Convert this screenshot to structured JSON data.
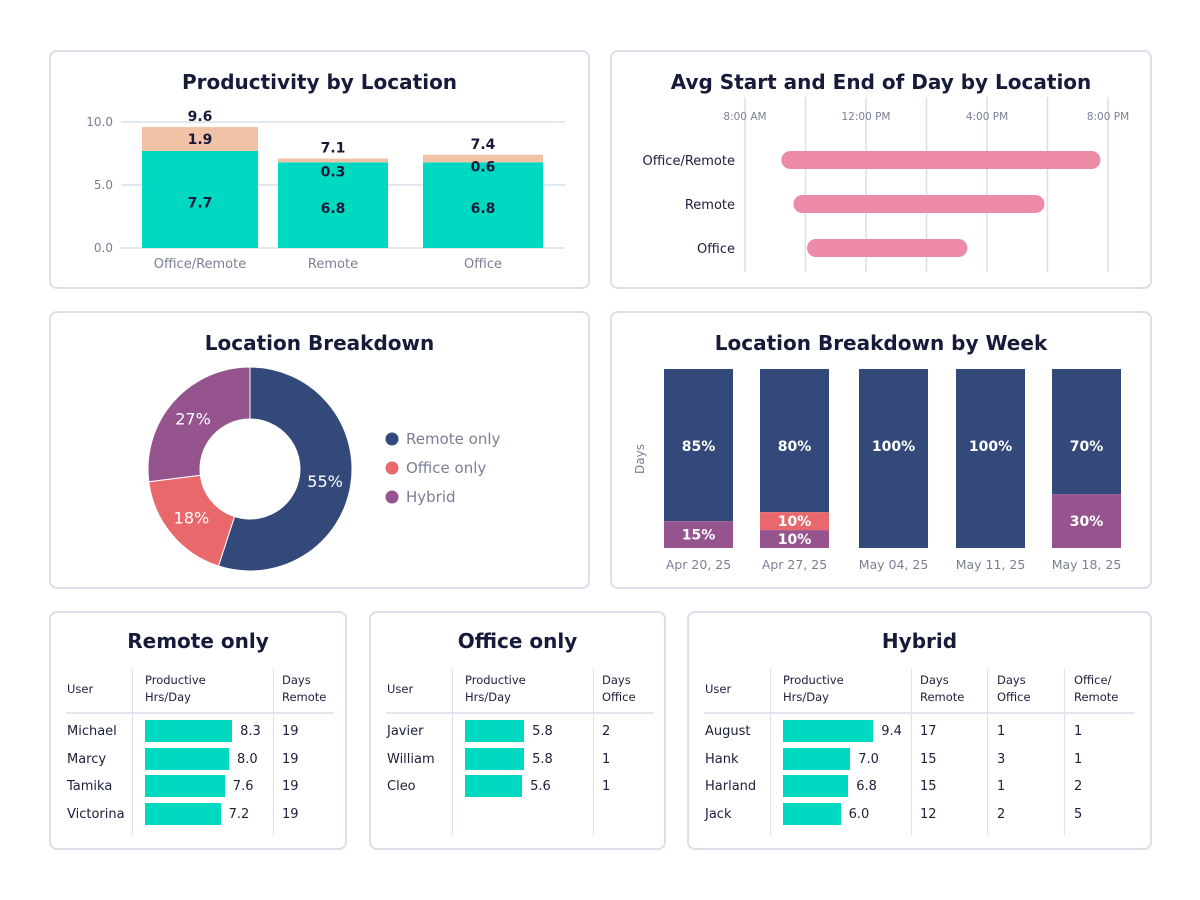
{
  "colors": {
    "teal": "#00d9c2",
    "peach": "#f2c2a6",
    "pink": "#ec8aa8",
    "navy": "#33497a",
    "office": "#e8686b",
    "hybrid": "#96548f",
    "grid": "#d9e0ea",
    "axis": "#7a7f95"
  },
  "chart_data": [
    {
      "type": "bar",
      "stacked": true,
      "title": "Productivity by Location",
      "categories": [
        "Office/Remote",
        "Remote",
        "Office"
      ],
      "series": [
        {
          "values": [
            7.7,
            6.8,
            6.8
          ]
        },
        {
          "values": [
            1.9,
            0.3,
            0.6
          ]
        }
      ],
      "totals": [
        9.6,
        7.1,
        7.4
      ],
      "yticks": [
        "0.0",
        "5.0",
        "10.0"
      ],
      "ylim": [
        0,
        10
      ],
      "grid": true
    },
    {
      "type": "bar",
      "orientation": "horizontal-range",
      "title": "Avg Start and End of Day by Location",
      "categories": [
        "Office/Remote",
        "Remote",
        "Office"
      ],
      "start_hours": [
        9.2,
        9.6,
        10.05
      ],
      "end_hours": [
        19.75,
        17.9,
        15.35
      ],
      "xticks": [
        "8:00 AM",
        "12:00 PM",
        "4:00 PM",
        "8:00 PM"
      ],
      "xlim_hours": [
        8,
        20
      ],
      "grid": true
    },
    {
      "type": "pie",
      "donut": true,
      "title": "Location Breakdown",
      "legend": "right",
      "slices": [
        {
          "name": "Remote only",
          "value": 55,
          "label": "55%"
        },
        {
          "name": "Office only",
          "value": 18,
          "label": "18%"
        },
        {
          "name": "Hybrid",
          "value": 27,
          "label": "27%"
        }
      ]
    },
    {
      "type": "bar",
      "stacked": true,
      "percent": true,
      "title": "Location Breakdown by Week",
      "ylabel": "Days",
      "categories": [
        "Apr 20, 25",
        "Apr 27, 25",
        "May 04, 25",
        "May 11, 25",
        "May 18, 25"
      ],
      "series": [
        {
          "key": "navy",
          "values": [
            85,
            80,
            100,
            100,
            70
          ]
        },
        {
          "key": "office",
          "values": [
            0,
            10,
            0,
            0,
            0
          ]
        },
        {
          "key": "hybrid",
          "values": [
            15,
            10,
            0,
            0,
            30
          ]
        }
      ]
    }
  ],
  "tables": [
    {
      "title": "Remote only",
      "headers": [
        "User",
        "Productive\nHrs/Day",
        "Days\nRemote"
      ],
      "rows": [
        [
          "Michael",
          8.3,
          "19"
        ],
        [
          "Marcy",
          8.0,
          "19"
        ],
        [
          "Tamika",
          7.6,
          "19"
        ],
        [
          "Victorina",
          7.2,
          "19"
        ]
      ]
    },
    {
      "title": "Office only",
      "headers": [
        "User",
        "Productive\nHrs/Day",
        "Days\nOffice"
      ],
      "rows": [
        [
          "Javier",
          5.8,
          "2"
        ],
        [
          "William",
          5.8,
          "1"
        ],
        [
          "Cleo",
          5.6,
          "1"
        ]
      ]
    },
    {
      "title": "Hybrid",
      "headers": [
        "User",
        "Productive\nHrs/Day",
        "Days\nRemote",
        "Days\nOffice",
        "Office/\nRemote"
      ],
      "rows": [
        [
          "August",
          9.4,
          "17",
          "1",
          "1"
        ],
        [
          "Hank",
          7.0,
          "15",
          "3",
          "1"
        ],
        [
          "Harland",
          6.8,
          "15",
          "1",
          "2"
        ],
        [
          "Jack",
          6.0,
          "12",
          "2",
          "5"
        ]
      ]
    }
  ]
}
